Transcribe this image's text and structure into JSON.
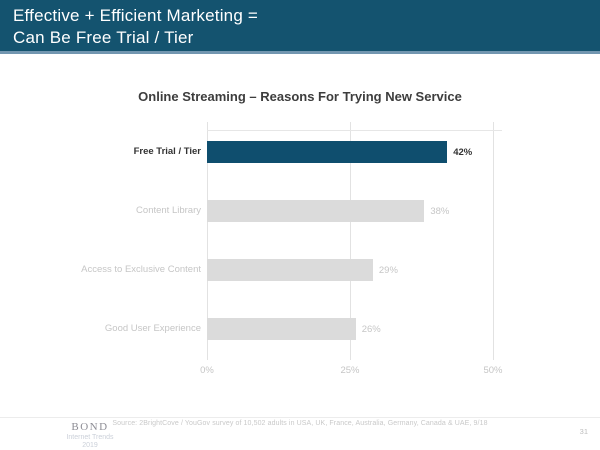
{
  "slide": {
    "header": {
      "title_line1": "Effective + Efficient Marketing =",
      "title_line2": "Can Be Free Trial / Tier",
      "background": "#14536F",
      "accent_line": "#7296B0"
    },
    "footer": {
      "logo_name": "BOND",
      "logo_subtitle": "Internet Trends",
      "logo_year": "2019",
      "source": "Source: 2BrightCove / YouGov survey of 10,502 adults in USA, UK, France, Australia, Germany, Canada & UAE, 9/18",
      "page_number": "31"
    }
  },
  "chart_data": {
    "type": "bar",
    "orientation": "horizontal",
    "title": "Online Streaming – Reasons For Trying New Service",
    "categories": [
      "Free Trial / Tier",
      "Content Library",
      "Access to Exclusive Content",
      "Good User Experience"
    ],
    "values": [
      42,
      38,
      29,
      26
    ],
    "value_labels": [
      "42%",
      "38%",
      "29%",
      "26%"
    ],
    "x_ticks": [
      {
        "label": "0%",
        "value": 0
      },
      {
        "label": "25%",
        "value": 25
      },
      {
        "label": "50%",
        "value": 50
      }
    ],
    "xlim": [
      0,
      50
    ],
    "grid": true,
    "legend": false,
    "highlight_index": 0,
    "colors": {
      "highlight_bar": "#0F4E6E",
      "default_bar": "#DBDBDB",
      "highlight_text": "#333333",
      "default_text": "#C6C6C6",
      "gridline": "#E2E2E2"
    }
  }
}
